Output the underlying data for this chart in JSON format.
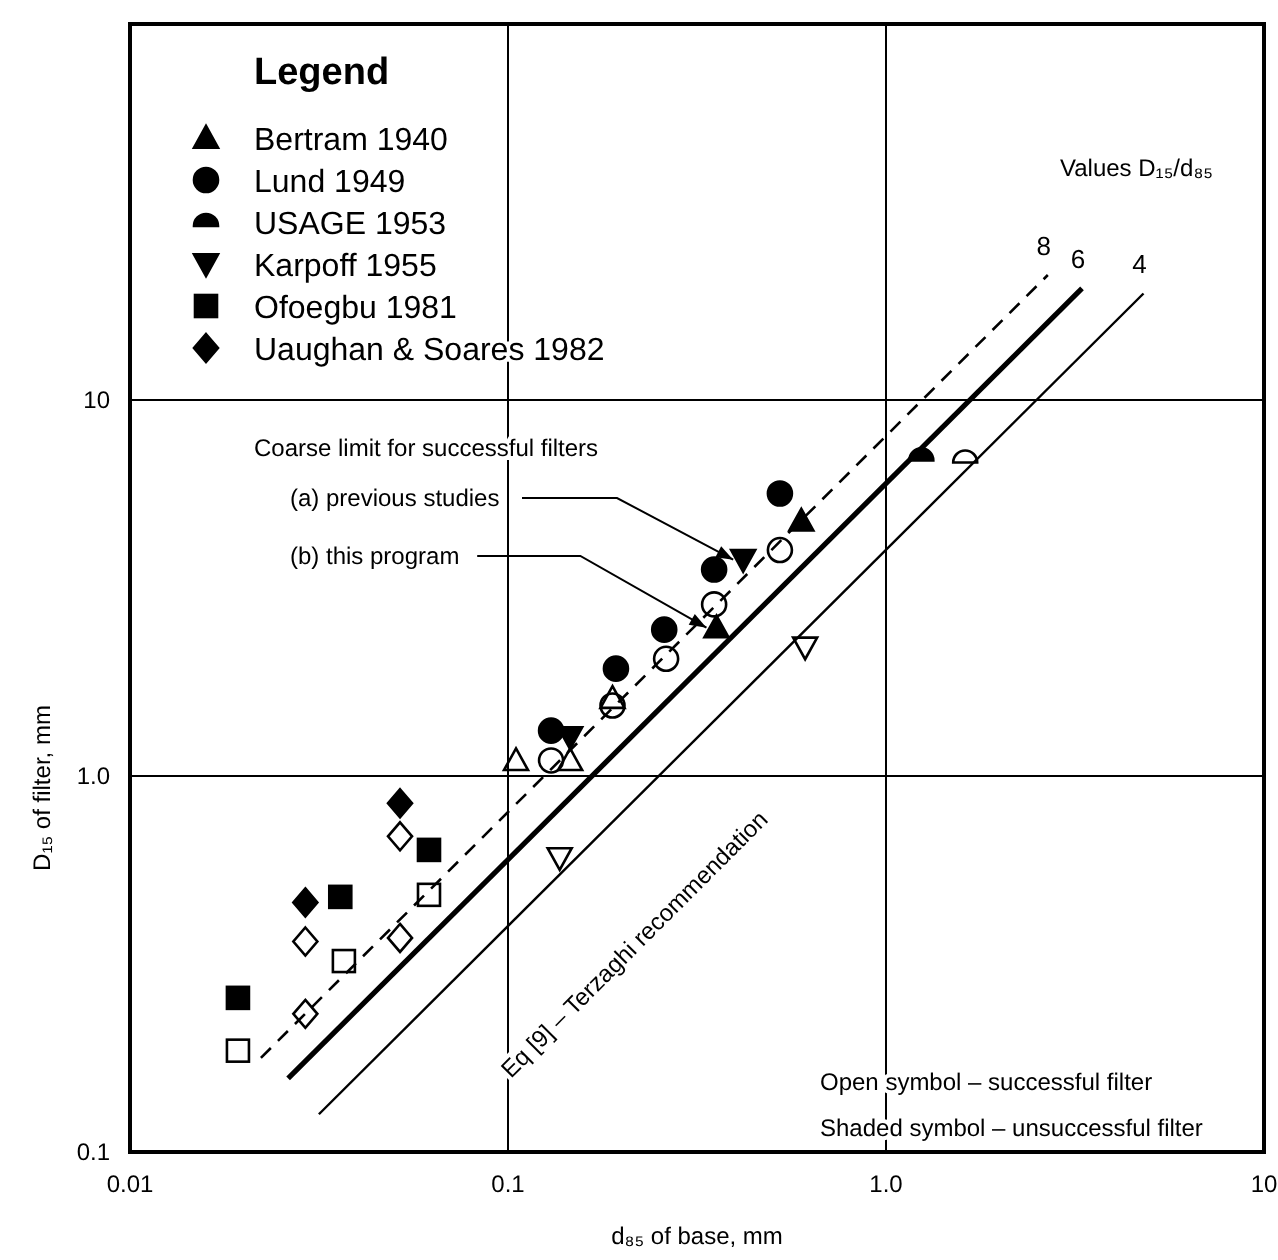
{
  "chart_data": {
    "type": "scatter",
    "xlabel": "d₈₅ of base, mm",
    "ylabel": "D₁₅ of filter, mm",
    "legend_title": "Legend",
    "legend": "top left",
    "log": "xy",
    "grid": true,
    "xlim": [
      0.01,
      10
    ],
    "xticks": [
      0.01,
      0.1,
      {
        "value": 1,
        "label": "1.0"
      },
      10
    ],
    "ylim": [
      0.1,
      100
    ],
    "yticks": [
      0.1,
      {
        "value": 1,
        "label": "1.0"
      },
      10
    ],
    "series": [
      {
        "name": "Bertram 1940",
        "color": "#000000",
        "marker": "triangle",
        "x": [
          0.356,
          0.597
        ],
        "values": [
          2.48,
          4.77
        ]
      },
      {
        "name": "Lund 1949",
        "color": "#000000",
        "marker": "circle",
        "x": [
          0.13,
          0.193,
          0.259,
          0.351,
          0.524
        ],
        "values": [
          1.32,
          1.93,
          2.45,
          3.54,
          5.64
        ]
      },
      {
        "name": "USAGE 1953",
        "color": "#000000",
        "marker": "half-circle",
        "x": [
          1.24
        ],
        "values": [
          7.08
        ]
      },
      {
        "name": "Karpoff 1955",
        "color": "#000000",
        "marker": "triangle-down",
        "x": [
          0.146,
          0.419
        ],
        "values": [
          1.27,
          3.76
        ]
      },
      {
        "name": "Ofoegbu 1981",
        "color": "#000000",
        "marker": "square",
        "x": [
          0.0193,
          0.036,
          0.0618
        ],
        "values": [
          0.257,
          0.477,
          0.636
        ]
      },
      {
        "name": "Uaughan & Soares 1982",
        "color": "#000000",
        "marker": "diamond",
        "x": [
          0.0291,
          0.0518
        ],
        "values": [
          0.461,
          0.846
        ]
      },
      {
        "color": "#000000",
        "marker": "triangle-open",
        "x": [
          0.105,
          0.146,
          0.189
        ],
        "values": [
          1.1,
          1.1,
          1.61
        ]
      },
      {
        "color": "#000000",
        "marker": "circle-open",
        "x": [
          0.13,
          0.189,
          0.262,
          0.351,
          0.524
        ],
        "values": [
          1.1,
          1.54,
          2.05,
          2.86,
          3.99
        ]
      },
      {
        "color": "#000000",
        "marker": "half-circle-open",
        "x": [
          1.62
        ],
        "values": [
          6.99
        ]
      },
      {
        "color": "#000000",
        "marker": "triangle-down-open",
        "x": [
          0.137,
          0.611
        ],
        "values": [
          0.606,
          2.2
        ]
      },
      {
        "color": "#000000",
        "marker": "square-open",
        "x": [
          0.0193,
          0.0368,
          0.0618
        ],
        "values": [
          0.186,
          0.322,
          0.483
        ]
      },
      {
        "color": "#000000",
        "marker": "diamond-open",
        "x": [
          0.0291,
          0.0518,
          0.0518,
          0.0291
        ],
        "values": [
          0.363,
          0.691,
          0.371,
          0.233
        ]
      },
      {
        "type": "line",
        "name": "8",
        "color": "#000000",
        "line_style": "dashed",
        "x": [
          0.0222,
          2.68
        ],
        "values": [
          0.178,
          21.5
        ]
      },
      {
        "type": "line",
        "name": "6",
        "color": "#000000",
        "line_style": "solid",
        "x": [
          0.0262,
          3.3
        ],
        "values": [
          0.157,
          19.8
        ]
      },
      {
        "type": "line",
        "name": "4",
        "color": "#000000",
        "line_style": "solid",
        "x": [
          0.0316,
          4.8
        ],
        "values": [
          0.126,
          19.2
        ]
      }
    ],
    "annotations": [
      "Values D₁₅/d₈₅",
      "Coarse limit for successful filters",
      {
        "text": "(a) previous studies",
        "x": 0.419,
        "y": 3.76
      },
      {
        "text": "(b) this program",
        "x": 0.356,
        "y": 2.48
      },
      "Eq [9] – Terzaghi recommendation",
      "Open symbol – successful filter",
      "Shaded symbol – unsuccessful filter"
    ]
  }
}
